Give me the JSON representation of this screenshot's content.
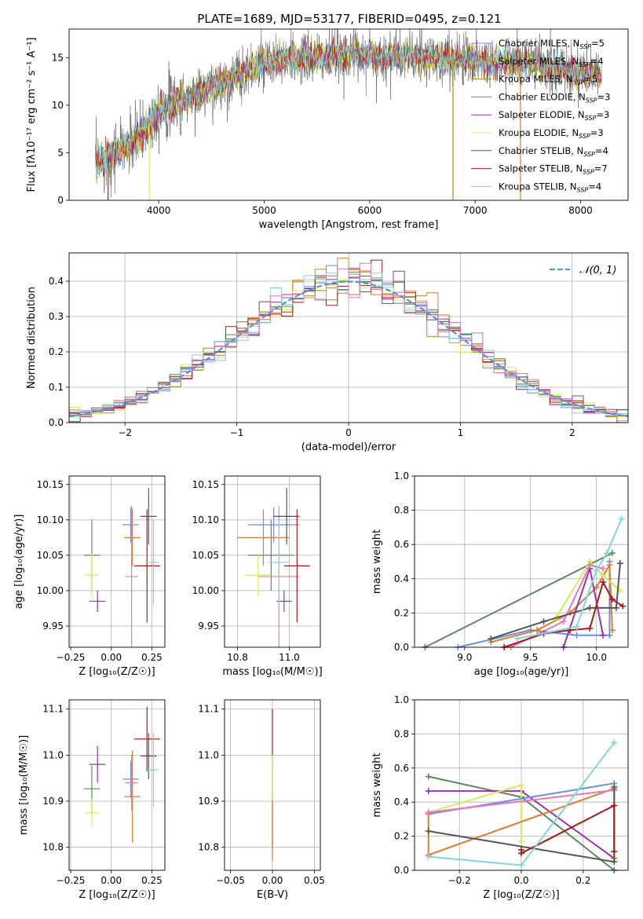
{
  "figure": {
    "title": "PLATE=1689, MJD=53177, FIBERID=0495, z=0.121",
    "colors": {
      "chabrier_miles": "#6b8fe0",
      "salpeter_miles": "#e07b2e",
      "kroupa_miles": "#b8860b",
      "chabrier_elodie": "#5a8a5a",
      "salpeter_elodie": "#9b30b0",
      "kroupa_elodie": "#d4ec5a",
      "chabrier_stelib": "#555555",
      "salpeter_stelib": "#b01818",
      "kroupa_stelib": "#7fd6e0",
      "pink": "#e878b8",
      "gaussian": "#5b8fd9",
      "grid": "#b0b0b0"
    }
  },
  "chart_data": [
    {
      "id": "spectrum",
      "type": "line",
      "xlabel": "wavelength [Angstrom, rest frame]",
      "ylabel": "Flux [fλ10⁻¹⁷ erg cm⁻² s⁻¹ A⁻¹]",
      "xlim": [
        3150,
        8450
      ],
      "ylim": [
        0,
        18
      ],
      "xticks": [
        "4000",
        "5000",
        "6000",
        "7000",
        "8000"
      ],
      "yticks": [
        "0",
        "5",
        "10",
        "15"
      ],
      "grid": false,
      "legend": "top-right",
      "continuum": {
        "x": [
          3400,
          3600,
          3800,
          4000,
          4100,
          4300,
          4500,
          4700,
          4900,
          5100,
          5300,
          5500,
          5700,
          5900,
          6100,
          6300,
          6500,
          6700,
          6900,
          7100,
          7300,
          7500,
          7700,
          7900,
          8100,
          8200
        ],
        "y": [
          4.0,
          5.0,
          6.5,
          9.5,
          10.0,
          10.8,
          11.8,
          12.8,
          14.0,
          14.5,
          14.8,
          15.0,
          15.2,
          15.5,
          15.0,
          15.2,
          15.0,
          14.8,
          14.9,
          14.6,
          14.5,
          14.5,
          14.0,
          13.6,
          13.2,
          13.0
        ]
      },
      "dropouts": [
        {
          "x": 3520,
          "series": "Salpeter STELIB"
        },
        {
          "x": 3910,
          "series": "Kroupa ELODIE"
        },
        {
          "x": 6790,
          "series": "Kroupa MILES"
        },
        {
          "x": 7430,
          "series": "Salpeter MILES"
        }
      ],
      "legend_entries": [
        {
          "label": "Chabrier MILES, N",
          "sub": "SSP",
          "tail": "=5",
          "color": "#6b8fe0"
        },
        {
          "label": "Salpeter MILES, N",
          "sub": "SSP",
          "tail": "=4",
          "color": "#e07b2e"
        },
        {
          "label": "Kroupa MILES, N",
          "sub": "SSP",
          "tail": "=5",
          "color": "#b8860b"
        },
        {
          "label": "Chabrier ELODIE, N",
          "sub": "SSP",
          "tail": "=3",
          "color": "#5a8a5a"
        },
        {
          "label": "Salpeter ELODIE, N",
          "sub": "SSP",
          "tail": "=3",
          "color": "#9b30b0"
        },
        {
          "label": "Kroupa ELODIE, N",
          "sub": "SSP",
          "tail": "=3",
          "color": "#d4ec5a"
        },
        {
          "label": "Chabrier STELIB, N",
          "sub": "SSP",
          "tail": "=4",
          "color": "#555555"
        },
        {
          "label": "Salpeter STELIB, N",
          "sub": "SSP",
          "tail": "=7",
          "color": "#b01818"
        },
        {
          "label": "Kroupa STELIB, N",
          "sub": "SSP",
          "tail": "=4",
          "color": "#7fd6e0"
        }
      ]
    },
    {
      "id": "residuals",
      "type": "line",
      "xlabel": "(data-model)/error",
      "ylabel": "Normed distribution",
      "xlim": [
        -2.5,
        2.5
      ],
      "ylim": [
        0,
        0.48
      ],
      "xticks": [
        "−2",
        "−1",
        "0",
        "1",
        "2"
      ],
      "yticks": [
        "0.0",
        "0.1",
        "0.2",
        "0.3",
        "0.4"
      ],
      "grid": true,
      "legend": "top-right",
      "legend_label": "𝒩(0, 1)",
      "bin_width": 0.1,
      "bin_range": [
        -2.5,
        2.5
      ],
      "series_colors": [
        "#6b8fe0",
        "#e07b2e",
        "#b8860b",
        "#5a8a5a",
        "#9b30b0",
        "#d4ec5a",
        "#555555",
        "#b01818",
        "#7fd6e0",
        "#e878b8"
      ]
    },
    {
      "id": "age-vs-Z",
      "type": "scatter",
      "xlabel": "Z [log₁₀(Z/Z☉)]",
      "ylabel": "age  [log₁₀(age/yr)]",
      "xlim": [
        -0.26,
        0.33
      ],
      "ylim": [
        9.92,
        10.162
      ],
      "xticks": [
        {
          "v": -0.25,
          "t": "−0.25"
        },
        {
          "v": 0.0,
          "t": "0.00"
        },
        {
          "v": 0.25,
          "t": "0.25"
        }
      ],
      "yticks": [
        {
          "v": 9.95,
          "t": "9.95"
        },
        {
          "v": 10.0,
          "t": "10.00"
        },
        {
          "v": 10.05,
          "t": "10.05"
        },
        {
          "v": 10.1,
          "t": "10.10"
        },
        {
          "v": 10.15,
          "t": "10.15"
        }
      ],
      "grid": true,
      "points": [
        {
          "x": -0.12,
          "xerr": 0.05,
          "y": 10.05,
          "yerr": 0.05,
          "color": "#5a8a5a"
        },
        {
          "x": -0.085,
          "xerr": 0.05,
          "y": 9.985,
          "yerr": 0.015,
          "color": "#9b30b0"
        },
        {
          "x": -0.12,
          "xerr": 0.04,
          "y": 10.022,
          "yerr": 0.03,
          "color": "#d4ec5a"
        },
        {
          "x": 0.12,
          "xerr": 0.05,
          "y": 10.093,
          "yerr": 0.025,
          "color": "#6b8fe0"
        },
        {
          "x": 0.13,
          "xerr": 0.05,
          "y": 10.075,
          "yerr": 0.04,
          "color": "#e07b2e"
        },
        {
          "x": 0.125,
          "xerr": 0.04,
          "y": 10.02,
          "yerr": 0.1,
          "color": "#e878b8"
        },
        {
          "x": 0.23,
          "xerr": 0.05,
          "y": 10.105,
          "yerr": 0.04,
          "color": "#555555"
        },
        {
          "x": 0.22,
          "xerr": 0.08,
          "y": 10.035,
          "yerr": 0.08,
          "color": "#b01818"
        },
        {
          "x": 0.26,
          "xerr": 0.03,
          "y": 10.04,
          "yerr": 0.06,
          "color": "#7fd6e0"
        }
      ]
    },
    {
      "id": "age-vs-mass",
      "type": "scatter",
      "xlabel": "mass [log₁₀(M/M☉)]",
      "ylabel": "",
      "xlim": [
        10.75,
        11.12
      ],
      "ylim": [
        9.92,
        10.162
      ],
      "xticks": [
        {
          "v": 10.8,
          "t": "10.8"
        },
        {
          "v": 11.0,
          "t": "11.0"
        }
      ],
      "yticks": [
        {
          "v": 9.95,
          "t": "9.95"
        },
        {
          "v": 10.0,
          "t": "10.00"
        },
        {
          "v": 10.05,
          "t": "10.05"
        },
        {
          "v": 10.1,
          "t": "10.10"
        },
        {
          "v": 10.15,
          "t": "10.15"
        }
      ],
      "grid": true,
      "points": [
        {
          "x": 10.93,
          "xerr": 0.09,
          "y": 10.05,
          "yerr": 0.05,
          "color": "#5a8a5a"
        },
        {
          "x": 10.98,
          "xerr": 0.03,
          "y": 9.985,
          "yerr": 0.015,
          "color": "#9b30b0"
        },
        {
          "x": 10.88,
          "xerr": 0.05,
          "y": 10.022,
          "yerr": 0.03,
          "color": "#d4ec5a"
        },
        {
          "x": 10.94,
          "xerr": 0.1,
          "y": 10.093,
          "yerr": 0.025,
          "color": "#6b8fe0"
        },
        {
          "x": 10.9,
          "xerr": 0.1,
          "y": 10.075,
          "yerr": 0.04,
          "color": "#e07b2e"
        },
        {
          "x": 10.96,
          "xerr": 0.08,
          "y": 10.02,
          "yerr": 0.1,
          "color": "#e878b8"
        },
        {
          "x": 10.99,
          "xerr": 0.05,
          "y": 10.105,
          "yerr": 0.04,
          "color": "#555555"
        },
        {
          "x": 11.03,
          "xerr": 0.05,
          "y": 10.035,
          "yerr": 0.08,
          "color": "#b01818"
        },
        {
          "x": 10.96,
          "xerr": 0.04,
          "y": 10.04,
          "yerr": 0.06,
          "color": "#7fd6e0"
        }
      ]
    },
    {
      "id": "weight-vs-age",
      "type": "line",
      "xlabel": "age  [log₁₀(age/yr)]",
      "ylabel": "mass weight",
      "xlim": [
        8.62,
        10.24
      ],
      "ylim": [
        0,
        1.0
      ],
      "xticks": [
        {
          "v": 9.0,
          "t": "9.0"
        },
        {
          "v": 9.5,
          "t": "9.5"
        },
        {
          "v": 10.0,
          "t": "10.0"
        }
      ],
      "yticks": [
        {
          "v": 0,
          "t": "0.0"
        },
        {
          "v": 0.2,
          "t": "0.2"
        },
        {
          "v": 0.4,
          "t": "0.4"
        },
        {
          "v": 0.6,
          "t": "0.6"
        },
        {
          "v": 0.8,
          "t": "0.8"
        },
        {
          "v": 1.0,
          "t": "1.0"
        }
      ],
      "grid": true,
      "series": [
        {
          "color": "#5a8a5a",
          "points": [
            [
              8.7,
              0.0
            ],
            [
              10.12,
              0.55
            ]
          ]
        },
        {
          "color": "#6b8fe0",
          "points": [
            [
              8.95,
              0.0
            ],
            [
              9.5,
              0.1
            ],
            [
              9.85,
              0.07
            ],
            [
              10.1,
              0.07
            ],
            [
              10.1,
              0.5
            ]
          ]
        },
        {
          "color": "#e07b2e",
          "points": [
            [
              9.2,
              0.03
            ],
            [
              9.55,
              0.1
            ],
            [
              9.8,
              0.2
            ],
            [
              10.0,
              0.35
            ],
            [
              10.1,
              0.48
            ],
            [
              10.12,
              0.1
            ]
          ]
        },
        {
          "color": "#d4ec5a",
          "points": [
            [
              9.7,
              0.18
            ],
            [
              9.95,
              0.5
            ],
            [
              10.05,
              0.42
            ],
            [
              10.18,
              0.33
            ]
          ]
        },
        {
          "color": "#9b30b0",
          "points": [
            [
              9.75,
              0.0
            ],
            [
              9.95,
              0.46
            ],
            [
              10.05,
              0.07
            ]
          ]
        },
        {
          "color": "#e878b8",
          "points": [
            [
              9.35,
              0.0
            ],
            [
              9.75,
              0.15
            ],
            [
              9.95,
              0.48
            ],
            [
              10.05,
              0.46
            ]
          ]
        },
        {
          "color": "#555555",
          "points": [
            [
              9.2,
              0.05
            ],
            [
              9.6,
              0.15
            ],
            [
              9.95,
              0.23
            ],
            [
              10.15,
              0.23
            ],
            [
              10.18,
              0.49
            ]
          ]
        },
        {
          "color": "#b01818",
          "points": [
            [
              9.3,
              0.0
            ],
            [
              9.6,
              0.08
            ],
            [
              9.8,
              0.1
            ],
            [
              9.95,
              0.11
            ],
            [
              10.05,
              0.38
            ],
            [
              10.12,
              0.28
            ],
            [
              10.2,
              0.24
            ]
          ]
        },
        {
          "color": "#7fd6e0",
          "points": [
            [
              9.4,
              0.05
            ],
            [
              9.85,
              0.12
            ],
            [
              10.0,
              0.45
            ],
            [
              10.08,
              0.55
            ],
            [
              10.19,
              0.75
            ]
          ]
        }
      ]
    },
    {
      "id": "mass-vs-Z",
      "type": "scatter",
      "xlabel": "Z [log₁₀(Z/Z☉)]",
      "ylabel": "mass [log₁₀(M/M☉)]",
      "xlim": [
        -0.26,
        0.33
      ],
      "ylim": [
        10.75,
        11.12
      ],
      "xticks": [
        {
          "v": -0.25,
          "t": "−0.25"
        },
        {
          "v": 0.0,
          "t": "0.00"
        },
        {
          "v": 0.25,
          "t": "0.25"
        }
      ],
      "yticks": [
        {
          "v": 10.8,
          "t": "10.8"
        },
        {
          "v": 10.9,
          "t": "10.9"
        },
        {
          "v": 11.0,
          "t": "11.0"
        },
        {
          "v": 11.1,
          "t": "11.1"
        }
      ],
      "grid": true,
      "points": [
        {
          "x": -0.12,
          "xerr": 0.05,
          "y": 10.927,
          "yerr": 0.05,
          "color": "#5a8a5a"
        },
        {
          "x": -0.085,
          "xerr": 0.05,
          "y": 10.98,
          "yerr": 0.04,
          "color": "#9b30b0"
        },
        {
          "x": -0.12,
          "xerr": 0.04,
          "y": 10.875,
          "yerr": 0.03,
          "color": "#d4ec5a"
        },
        {
          "x": 0.12,
          "xerr": 0.05,
          "y": 10.948,
          "yerr": 0.04,
          "color": "#6b8fe0"
        },
        {
          "x": 0.13,
          "xerr": 0.05,
          "y": 10.91,
          "yerr": 0.1,
          "color": "#e07b2e"
        },
        {
          "x": 0.125,
          "xerr": 0.04,
          "y": 10.94,
          "yerr": 0.06,
          "color": "#e878b8"
        },
        {
          "x": 0.23,
          "xerr": 0.05,
          "y": 10.998,
          "yerr": 0.05,
          "color": "#555555"
        },
        {
          "x": 0.22,
          "xerr": 0.08,
          "y": 11.035,
          "yerr": 0.07,
          "color": "#b01818"
        },
        {
          "x": 0.26,
          "xerr": 0.03,
          "y": 10.968,
          "yerr": 0.08,
          "color": "#7fd6e0"
        }
      ]
    },
    {
      "id": "mass-vs-ebv",
      "type": "scatter",
      "xlabel": "E(B-V)",
      "ylabel": "",
      "xlim": [
        -0.057,
        0.057
      ],
      "ylim": [
        10.75,
        11.12
      ],
      "xticks": [
        {
          "v": -0.05,
          "t": "−0.05"
        },
        {
          "v": 0.0,
          "t": "0.00"
        },
        {
          "v": 0.05,
          "t": "0.05"
        }
      ],
      "yticks": [
        {
          "v": 10.8,
          "t": "10.8"
        },
        {
          "v": 10.9,
          "t": "10.9"
        },
        {
          "v": 11.0,
          "t": "11.0"
        },
        {
          "v": 11.1,
          "t": "11.1"
        }
      ],
      "grid": true,
      "points": [
        {
          "x": 0,
          "xerr": 0,
          "y": 10.95,
          "yerr": 0.15,
          "color": "#b01818"
        },
        {
          "x": 0,
          "xerr": 0,
          "y": 10.85,
          "yerr": 0.08,
          "color": "#e07b2e"
        },
        {
          "x": 0,
          "xerr": 0,
          "y": 10.95,
          "yerr": 0.05,
          "color": "#d4ec5a"
        }
      ]
    },
    {
      "id": "weight-vs-Z",
      "type": "line",
      "xlabel": "Z [log₁₀(Z/Z☉)]",
      "ylabel": "mass weight",
      "xlim": [
        -0.345,
        0.345
      ],
      "ylim": [
        0,
        1.0
      ],
      "xticks": [
        {
          "v": -0.2,
          "t": "−0.2"
        },
        {
          "v": 0.0,
          "t": "0.0"
        },
        {
          "v": 0.2,
          "t": "0.2"
        }
      ],
      "yticks": [
        {
          "v": 0,
          "t": "0.0"
        },
        {
          "v": 0.2,
          "t": "0.2"
        },
        {
          "v": 0.4,
          "t": "0.4"
        },
        {
          "v": 0.6,
          "t": "0.6"
        },
        {
          "v": 0.8,
          "t": "0.8"
        },
        {
          "v": 1.0,
          "t": "1.0"
        }
      ],
      "grid": true,
      "series": [
        {
          "color": "#5a8a5a",
          "points": [
            [
              -0.3,
              0.55
            ],
            [
              0.0,
              0.43
            ],
            [
              0.3,
              0.0
            ]
          ]
        },
        {
          "color": "#9b30b0",
          "points": [
            [
              -0.3,
              0.465
            ],
            [
              0.0,
              0.465
            ],
            [
              0.3,
              0.07
            ]
          ]
        },
        {
          "color": "#d4ec5a",
          "points": [
            [
              -0.3,
              0.34
            ],
            [
              0.0,
              0.5
            ],
            [
              0.0,
              0.17
            ]
          ]
        },
        {
          "color": "#6b8fe0",
          "points": [
            [
              -0.3,
              0.33
            ],
            [
              0.3,
              0.51
            ]
          ]
        },
        {
          "color": "#e07b2e",
          "points": [
            [
              -0.3,
              0.33
            ],
            [
              -0.3,
              0.09
            ],
            [
              0.3,
              0.48
            ],
            [
              0.3,
              0.07
            ]
          ]
        },
        {
          "color": "#e878b8",
          "points": [
            [
              -0.3,
              0.34
            ],
            [
              0.3,
              0.47
            ]
          ]
        },
        {
          "color": "#555555",
          "points": [
            [
              -0.3,
              0.23
            ],
            [
              0.3,
              0.05
            ],
            [
              0.3,
              0.49
            ]
          ]
        },
        {
          "color": "#b01818",
          "points": [
            [
              0.0,
              0.12
            ],
            [
              0.0,
              0.1
            ],
            [
              0.3,
              0.38
            ],
            [
              0.3,
              0.11
            ]
          ]
        },
        {
          "color": "#7fd6e0",
          "points": [
            [
              -0.3,
              0.08
            ],
            [
              0.0,
              0.03
            ],
            [
              0.3,
              0.75
            ]
          ]
        }
      ]
    }
  ]
}
